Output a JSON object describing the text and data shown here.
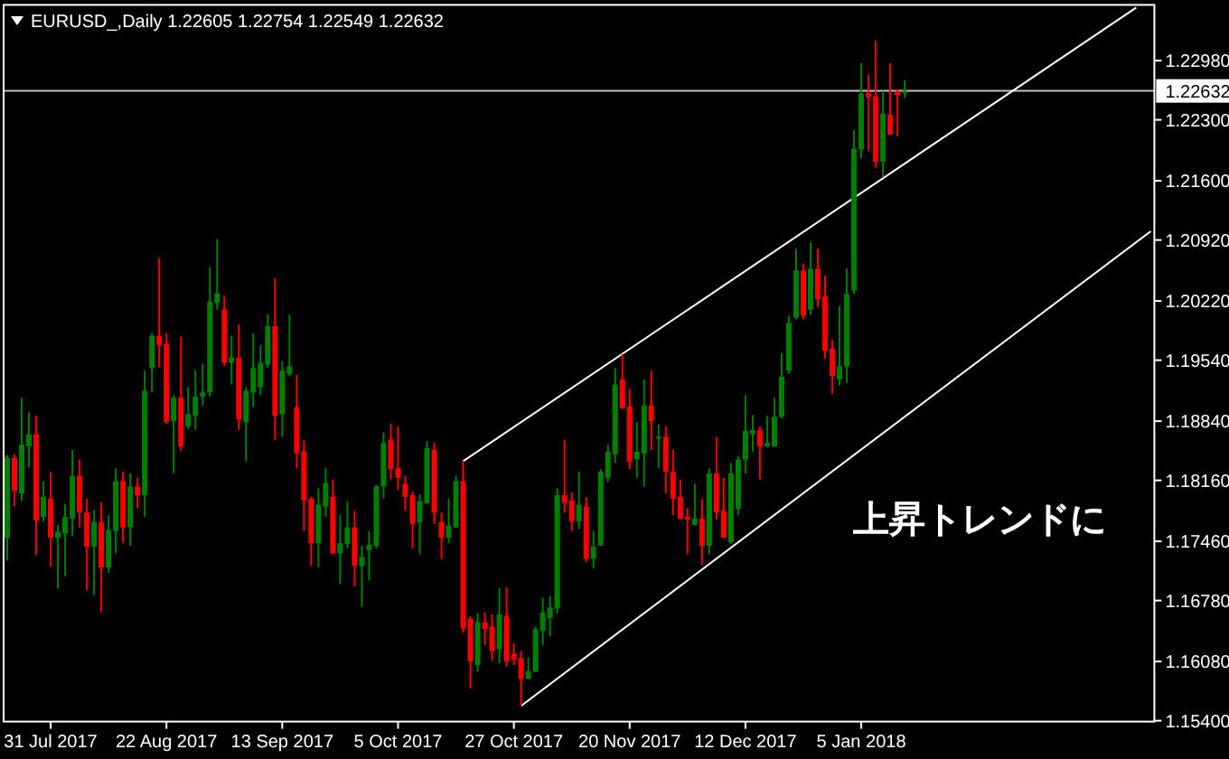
{
  "chart_data": {
    "type": "candlestick",
    "title": "EURUSD_,Daily 1.22605 1.22754 1.22549 1.22632",
    "categories": [
      null,
      null,
      null,
      null,
      null,
      null,
      "31 Jul 2017",
      null,
      null,
      null,
      null,
      null,
      null,
      null,
      null,
      null,
      null,
      null,
      null,
      null,
      null,
      null,
      "22 Aug 2017",
      null,
      null,
      null,
      null,
      null,
      null,
      null,
      null,
      null,
      null,
      null,
      null,
      null,
      null,
      null,
      "13 Sep 2017",
      null,
      null,
      null,
      null,
      null,
      null,
      null,
      null,
      null,
      null,
      null,
      null,
      null,
      null,
      null,
      "5 Oct 2017",
      null,
      null,
      null,
      null,
      null,
      null,
      null,
      null,
      null,
      null,
      null,
      null,
      null,
      null,
      null,
      "27 Oct 2017",
      null,
      null,
      null,
      null,
      null,
      null,
      null,
      null,
      null,
      null,
      null,
      null,
      null,
      null,
      null,
      "20 Nov 2017",
      null,
      null,
      null,
      null,
      null,
      null,
      null,
      null,
      null,
      null,
      null,
      null,
      null,
      null,
      null,
      "12 Dec 2017",
      null,
      null,
      null,
      null,
      null,
      null,
      null,
      null,
      null,
      null,
      null,
      null,
      null,
      null,
      null,
      "5 Jan 2018",
      null,
      null,
      null,
      null,
      null,
      null,
      null,
      null,
      null,
      null,
      null,
      null,
      null,
      null,
      null,
      null,
      null,
      null,
      null,
      null,
      null,
      null,
      null,
      null,
      null,
      null,
      null,
      null,
      null,
      null,
      null,
      null,
      null,
      null,
      null,
      null,
      null,
      null,
      null,
      null
    ],
    "ohlc": [
      [
        1.175,
        1.1845,
        1.1724,
        1.1842
      ],
      [
        1.1842,
        1.1846,
        1.1786,
        1.1804
      ],
      [
        1.1801,
        1.1911,
        1.1793,
        1.1857
      ],
      [
        1.1855,
        1.1894,
        1.1831,
        1.1869
      ],
      [
        1.1869,
        1.189,
        1.173,
        1.177
      ],
      [
        1.1774,
        1.1815,
        1.1769,
        1.1797
      ],
      [
        1.1795,
        1.1826,
        1.1717,
        1.175
      ],
      [
        1.175,
        1.1765,
        1.1692,
        1.1757
      ],
      [
        1.1755,
        1.1789,
        1.1706,
        1.1774
      ],
      [
        1.1772,
        1.1851,
        1.1752,
        1.1821
      ],
      [
        1.1821,
        1.184,
        1.1762,
        1.1779
      ],
      [
        1.1779,
        1.1795,
        1.169,
        1.174
      ],
      [
        1.174,
        1.1782,
        1.1684,
        1.1768
      ],
      [
        1.1768,
        1.1791,
        1.1665,
        1.1716
      ],
      [
        1.1716,
        1.1776,
        1.171,
        1.1759
      ],
      [
        1.1758,
        1.183,
        1.1732,
        1.1815
      ],
      [
        1.1815,
        1.1826,
        1.1744,
        1.1762
      ],
      [
        1.1762,
        1.1824,
        1.1741,
        1.1809
      ],
      [
        1.1809,
        1.1819,
        1.1784,
        1.1799
      ],
      [
        1.1799,
        1.1942,
        1.1774,
        1.1919
      ],
      [
        1.1945,
        1.1985,
        1.1917,
        1.1982
      ],
      [
        1.1982,
        1.2071,
        1.1946,
        1.1971
      ],
      [
        1.1973,
        1.1985,
        1.1881,
        1.1883
      ],
      [
        1.1884,
        1.1914,
        1.1824,
        1.1911
      ],
      [
        1.1911,
        1.1981,
        1.185,
        1.1855
      ],
      [
        1.1878,
        1.1923,
        1.1875,
        1.1892
      ],
      [
        1.189,
        1.1942,
        1.1874,
        1.1912
      ],
      [
        1.1912,
        1.195,
        1.1902,
        1.1917
      ],
      [
        1.1917,
        1.2061,
        1.1912,
        1.2021
      ],
      [
        1.202,
        1.2093,
        1.2012,
        1.2031
      ],
      [
        1.2012,
        1.2028,
        1.1947,
        1.1951
      ],
      [
        1.1951,
        1.1982,
        1.1926,
        1.1957
      ],
      [
        1.1957,
        1.1995,
        1.1874,
        1.1886
      ],
      [
        1.1883,
        1.1923,
        1.1838,
        1.1919
      ],
      [
        1.1917,
        1.1985,
        1.19,
        1.1945
      ],
      [
        1.1923,
        1.1971,
        1.1914,
        1.1951
      ],
      [
        1.1949,
        1.2007,
        1.1945,
        1.1993
      ],
      [
        1.1993,
        1.2048,
        1.1862,
        1.189
      ],
      [
        1.1892,
        1.1953,
        1.1866,
        1.1942
      ],
      [
        1.1938,
        1.2006,
        1.1936,
        1.1947
      ],
      [
        1.19,
        1.1937,
        1.183,
        1.1847
      ],
      [
        1.1849,
        1.1862,
        1.1758,
        1.1793
      ],
      [
        1.1795,
        1.1797,
        1.1718,
        1.1744
      ],
      [
        1.1744,
        1.1807,
        1.1716,
        1.1788
      ],
      [
        1.1786,
        1.183,
        1.1774,
        1.1813
      ],
      [
        1.1797,
        1.1817,
        1.1731,
        1.1732
      ],
      [
        1.1732,
        1.1776,
        1.1697,
        1.1744
      ],
      [
        1.1743,
        1.1792,
        1.1738,
        1.1762
      ],
      [
        1.1762,
        1.1781,
        1.1694,
        1.1718
      ],
      [
        1.1718,
        1.1741,
        1.1671,
        1.1728
      ],
      [
        1.1736,
        1.1758,
        1.1701,
        1.1742
      ],
      [
        1.1741,
        1.1811,
        1.1738,
        1.1809
      ],
      [
        1.1809,
        1.1871,
        1.1795,
        1.1859
      ],
      [
        1.1863,
        1.1881,
        1.1817,
        1.1829
      ],
      [
        1.183,
        1.1878,
        1.1805,
        1.1819
      ],
      [
        1.1812,
        1.1821,
        1.1781,
        1.1797
      ],
      [
        1.1799,
        1.1803,
        1.1738,
        1.1766
      ],
      [
        1.1768,
        1.18,
        1.1731,
        1.1792
      ],
      [
        1.179,
        1.1861,
        1.1789,
        1.1853
      ],
      [
        1.1851,
        1.1859,
        1.1766,
        1.1779
      ],
      [
        1.1768,
        1.1779,
        1.1726,
        1.175
      ],
      [
        1.175,
        1.1795,
        1.1744,
        1.1764
      ],
      [
        1.1762,
        1.1821,
        1.1762,
        1.1815
      ],
      [
        1.1815,
        1.1838,
        1.1641,
        1.1646
      ],
      [
        1.1657,
        1.166,
        1.1577,
        1.1608
      ],
      [
        1.1604,
        1.1664,
        1.1596,
        1.1653
      ],
      [
        1.1653,
        1.1664,
        1.1627,
        1.1645
      ],
      [
        1.1648,
        1.1662,
        1.1609,
        1.162
      ],
      [
        1.1622,
        1.1692,
        1.1606,
        1.1662
      ],
      [
        1.166,
        1.1693,
        1.1602,
        1.1608
      ],
      [
        1.1617,
        1.1629,
        1.1604,
        1.161
      ],
      [
        1.1612,
        1.162,
        1.1557,
        1.1588
      ],
      [
        1.1588,
        1.1613,
        1.1588,
        1.1597
      ],
      [
        1.1596,
        1.1648,
        1.1596,
        1.1645
      ],
      [
        1.1643,
        1.1681,
        1.1627,
        1.1664
      ],
      [
        1.1658,
        1.1683,
        1.1637,
        1.167
      ],
      [
        1.1669,
        1.1807,
        1.1663,
        1.1799
      ],
      [
        1.1799,
        1.1863,
        1.1779,
        1.179
      ],
      [
        1.1793,
        1.1802,
        1.1758,
        1.1769
      ],
      [
        1.1769,
        1.1826,
        1.176,
        1.1788
      ],
      [
        1.1786,
        1.1797,
        1.1722,
        1.1726
      ],
      [
        1.1726,
        1.1758,
        1.1715,
        1.174
      ],
      [
        1.1741,
        1.1829,
        1.1741,
        1.1826
      ],
      [
        1.1819,
        1.1857,
        1.1814,
        1.1849
      ],
      [
        1.1846,
        1.1945,
        1.1836,
        1.1926
      ],
      [
        1.1932,
        1.1961,
        1.1898,
        1.1899
      ],
      [
        1.1901,
        1.1921,
        1.1829,
        1.1837
      ],
      [
        1.184,
        1.1883,
        1.1819,
        1.1849
      ],
      [
        1.1847,
        1.1932,
        1.1809,
        1.1902
      ],
      [
        1.1902,
        1.1942,
        1.1851,
        1.1884
      ],
      [
        1.1864,
        1.188,
        1.183,
        1.1866
      ],
      [
        1.1866,
        1.1878,
        1.1801,
        1.1826
      ],
      [
        1.1826,
        1.1851,
        1.1776,
        1.1795
      ],
      [
        1.1797,
        1.1817,
        1.1771,
        1.1772
      ],
      [
        1.1774,
        1.1784,
        1.1731,
        1.1771
      ],
      [
        1.1765,
        1.1812,
        1.1764,
        1.1772
      ],
      [
        1.1772,
        1.1795,
        1.1719,
        1.1741
      ],
      [
        1.1741,
        1.183,
        1.1731,
        1.1824
      ],
      [
        1.1824,
        1.1866,
        1.1771,
        1.1779
      ],
      [
        1.1781,
        1.1819,
        1.175,
        1.175
      ],
      [
        1.1745,
        1.1836,
        1.1743,
        1.1824
      ],
      [
        1.1783,
        1.1844,
        1.1776,
        1.184
      ],
      [
        1.184,
        1.1914,
        1.1824,
        1.1873
      ],
      [
        1.1869,
        1.1891,
        1.1849,
        1.1874
      ],
      [
        1.1874,
        1.1878,
        1.1817,
        1.1855
      ],
      [
        1.1855,
        1.189,
        1.1854,
        1.1859
      ],
      [
        1.1855,
        1.1911,
        1.1855,
        1.1889
      ],
      [
        1.1889,
        1.1962,
        1.1887,
        1.1935
      ],
      [
        1.1942,
        1.2005,
        1.1938,
        1.1997
      ],
      [
        1.2003,
        1.2082,
        1.2001,
        1.2057
      ],
      [
        1.2057,
        1.2065,
        1.2001,
        1.2005
      ],
      [
        1.2012,
        1.2089,
        1.2006,
        1.2059
      ],
      [
        1.2059,
        1.2082,
        1.2015,
        1.2024
      ],
      [
        1.2027,
        1.2051,
        1.1956,
        1.1965
      ],
      [
        1.1967,
        1.1977,
        1.1915,
        1.1936
      ],
      [
        1.1932,
        1.2016,
        1.1925,
        1.1947
      ],
      [
        1.1947,
        1.2059,
        1.1928,
        1.203
      ],
      [
        1.2034,
        1.2218,
        1.203,
        1.2197
      ],
      [
        1.2196,
        1.2295,
        1.2186,
        1.226
      ],
      [
        1.2261,
        1.2282,
        1.2194,
        1.2256
      ],
      [
        1.2257,
        1.2321,
        1.2175,
        1.2182
      ],
      [
        1.2182,
        1.2263,
        1.2164,
        1.2237
      ],
      [
        1.2236,
        1.2295,
        1.2213,
        1.2213
      ],
      [
        1.2263,
        1.2265,
        1.2211,
        1.2258
      ],
      [
        1.22605,
        1.22754,
        1.22549,
        1.22632
      ],
      null,
      null,
      null,
      null,
      null,
      null,
      null,
      null,
      null,
      null,
      null,
      null,
      null,
      null,
      null,
      null,
      null,
      null,
      null,
      null,
      null,
      null,
      null,
      null,
      null,
      null,
      null,
      null,
      null,
      null,
      null,
      null,
      null,
      null
    ],
    "colors": [
      "#008000",
      "#ff0000",
      "#008000",
      "#008000",
      "#ff0000",
      "#008000",
      "#ff0000",
      "#008000",
      "#008000",
      "#008000",
      "#ff0000",
      "#ff0000",
      "#008000",
      "#ff0000",
      "#008000",
      "#008000",
      "#ff0000",
      "#008000",
      "#ff0000",
      "#008000",
      "#008000",
      "#ff0000",
      "#ff0000",
      "#008000",
      "#ff0000",
      "#008000",
      "#008000",
      "#008000",
      "#008000",
      "#008000",
      "#ff0000",
      "#008000",
      "#ff0000",
      "#008000",
      "#008000",
      "#008000",
      "#008000",
      "#ff0000",
      "#008000",
      "#008000",
      "#ff0000",
      "#ff0000",
      "#ff0000",
      "#008000",
      "#008000",
      "#ff0000",
      "#008000",
      "#008000",
      "#ff0000",
      "#008000",
      "#008000",
      "#008000",
      "#008000",
      "#ff0000",
      "#ff0000",
      "#ff0000",
      "#ff0000",
      "#008000",
      "#008000",
      "#ff0000",
      "#ff0000",
      "#008000",
      "#008000",
      "#ff0000",
      "#ff0000",
      "#008000",
      "#ff0000",
      "#ff0000",
      "#008000",
      "#ff0000",
      "#ff0000",
      "#ff0000",
      "#008000",
      "#008000",
      "#008000",
      "#008000",
      "#008000",
      "#ff0000",
      "#ff0000",
      "#008000",
      "#ff0000",
      "#008000",
      "#008000",
      "#008000",
      "#008000",
      "#ff0000",
      "#ff0000",
      "#008000",
      "#008000",
      "#ff0000",
      "#008000",
      "#ff0000",
      "#ff0000",
      "#ff0000",
      "#ff0000",
      "#008000",
      "#ff0000",
      "#008000",
      "#ff0000",
      "#ff0000",
      "#008000",
      "#008000",
      "#008000",
      "#008000",
      "#ff0000",
      "#008000",
      "#008000",
      "#008000",
      "#008000",
      "#008000",
      "#ff0000",
      "#008000",
      "#ff0000",
      "#ff0000",
      "#ff0000",
      "#008000",
      "#008000",
      "#008000",
      "#008000",
      "#ff0000",
      "#ff0000",
      "#008000",
      "#ff0000",
      "#ff0000",
      "#008000",
      null,
      null,
      null,
      null,
      null,
      null,
      null,
      null,
      null,
      null,
      null,
      null,
      null,
      null,
      null,
      null,
      null,
      null,
      null,
      null,
      null,
      null,
      null,
      null,
      null,
      null,
      null,
      null,
      null,
      null,
      null,
      null,
      null,
      null
    ],
    "series": [
      {
        "type": "line",
        "color": "#ffffff",
        "values": [
          null,
          null,
          null,
          null,
          null,
          null,
          null,
          null,
          null,
          null,
          null,
          null,
          null,
          null,
          null,
          null,
          null,
          null,
          null,
          null,
          null,
          null,
          null,
          null,
          null,
          null,
          null,
          null,
          null,
          null,
          null,
          null,
          null,
          null,
          null,
          null,
          null,
          null,
          null,
          null,
          null,
          null,
          null,
          null,
          null,
          null,
          null,
          null,
          null,
          null,
          null,
          null,
          null,
          null,
          null,
          null,
          null,
          null,
          null,
          null,
          null,
          null,
          null,
          1.1838,
          null,
          null,
          null,
          null,
          null,
          null,
          null,
          null,
          null,
          null,
          null,
          null,
          null,
          null,
          null,
          null,
          null,
          null,
          null,
          null,
          null,
          null,
          null,
          null,
          null,
          null,
          null,
          null,
          null,
          null,
          null,
          null,
          null,
          null,
          null,
          null,
          null,
          null,
          null,
          null,
          null,
          null,
          null,
          null,
          null,
          null,
          null,
          null,
          null,
          null,
          null,
          null,
          null,
          null,
          null,
          null,
          null,
          null,
          null,
          null,
          null,
          null,
          null,
          null,
          null,
          null,
          null,
          null,
          null,
          null,
          null,
          null,
          null,
          null,
          null,
          null,
          null,
          null,
          null,
          null,
          null,
          null,
          null,
          null,
          null,
          null,
          null,
          null,
          null,
          null,
          null,
          null,
          1.2359,
          null,
          null
        ]
      },
      {
        "type": "line",
        "color": "#ffffff",
        "values": [
          null,
          null,
          null,
          null,
          null,
          null,
          null,
          null,
          null,
          null,
          null,
          null,
          null,
          null,
          null,
          null,
          null,
          null,
          null,
          null,
          null,
          null,
          null,
          null,
          null,
          null,
          null,
          null,
          null,
          null,
          null,
          null,
          null,
          null,
          null,
          null,
          null,
          null,
          null,
          null,
          null,
          null,
          null,
          null,
          null,
          null,
          null,
          null,
          null,
          null,
          null,
          null,
          null,
          null,
          null,
          null,
          null,
          null,
          null,
          null,
          null,
          null,
          null,
          null,
          null,
          null,
          null,
          null,
          null,
          null,
          null,
          1.1557,
          null,
          null,
          null,
          null,
          null,
          null,
          null,
          null,
          null,
          null,
          null,
          null,
          null,
          null,
          null,
          null,
          null,
          null,
          null,
          null,
          null,
          null,
          null,
          null,
          null,
          null,
          null,
          null,
          null,
          null,
          null,
          null,
          null,
          null,
          null,
          null,
          null,
          null,
          null,
          null,
          null,
          null,
          null,
          null,
          null,
          null,
          null,
          null,
          null,
          null,
          null,
          null,
          null,
          null,
          null,
          null,
          null,
          null,
          null,
          null,
          null,
          null,
          null,
          null,
          null,
          null,
          null,
          null,
          null,
          null,
          null,
          null,
          null,
          null,
          null,
          null,
          null,
          null,
          null,
          null,
          null,
          null,
          null,
          null,
          null,
          null,
          1.2102
        ]
      }
    ],
    "ylim": [
      1.1539,
      1.2362
    ],
    "yticks": [
      {
        "value": 1.154,
        "label": "1.15400"
      },
      {
        "value": 1.1608,
        "label": "1.16080"
      },
      {
        "value": 1.1678,
        "label": "1.16780"
      },
      {
        "value": 1.1746,
        "label": "1.17460"
      },
      {
        "value": 1.1816,
        "label": "1.18160"
      },
      {
        "value": 1.1884,
        "label": "1.18840"
      },
      {
        "value": 1.1954,
        "label": "1.19540"
      },
      {
        "value": 1.2022,
        "label": "1.20220"
      },
      {
        "value": 1.2092,
        "label": "1.20920"
      },
      {
        "value": 1.216,
        "label": "1.21600"
      },
      {
        "value": 1.223,
        "label": "1.22300"
      },
      {
        "value": 1.2298,
        "label": "1.22980"
      }
    ],
    "ref_lines": [
      {
        "axis": "y",
        "value": 1.22632,
        "label": "1.22632",
        "color": "#c0c0c0"
      }
    ],
    "annotations": [
      "上昇トレンドに"
    ]
  }
}
